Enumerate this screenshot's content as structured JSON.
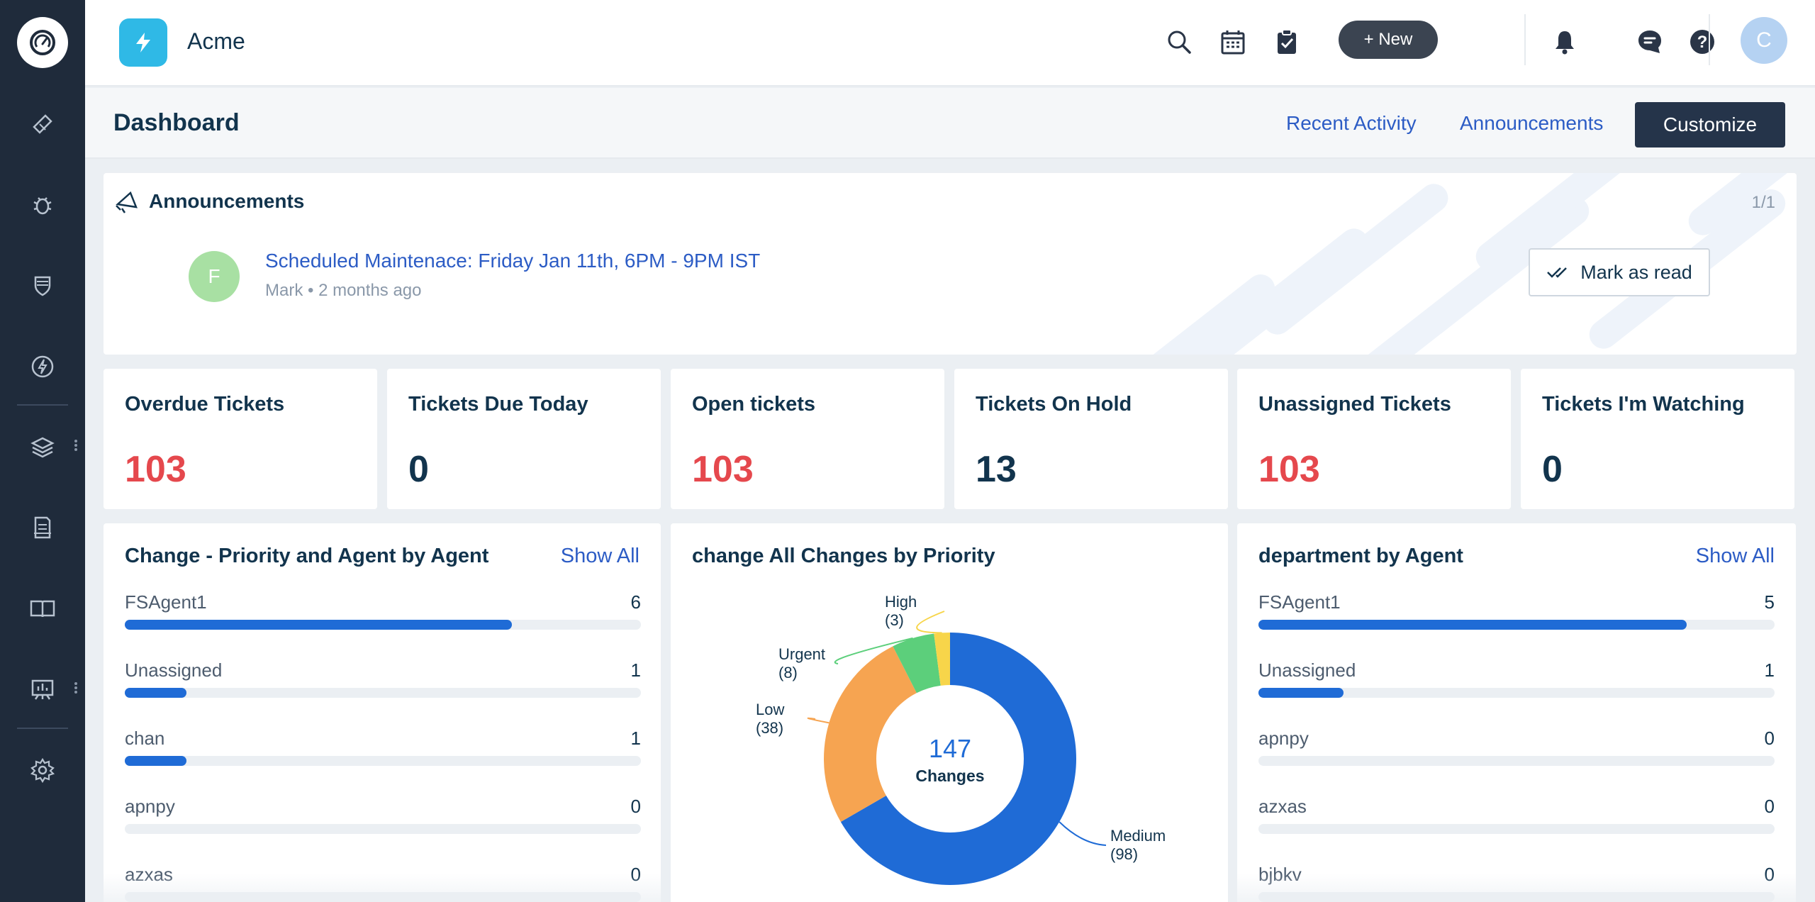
{
  "brand": {
    "name": "Acme"
  },
  "header": {
    "new_label": "+ New",
    "user_initial": "C"
  },
  "subheader": {
    "title": "Dashboard",
    "recent_activity": "Recent Activity",
    "announcements": "Announcements",
    "customize": "Customize"
  },
  "announcement": {
    "title": "Announcements",
    "page": "1/1",
    "avatar_initial": "F",
    "headline": "Scheduled Maintenace: Friday Jan 11th, 6PM - 9PM IST",
    "meta": "Mark • 2 months ago",
    "mark_read": "Mark as read"
  },
  "stats": [
    {
      "label": "Overdue Tickets",
      "value": "103",
      "alert": true
    },
    {
      "label": "Tickets Due Today",
      "value": "0",
      "alert": false
    },
    {
      "label": "Open tickets",
      "value": "103",
      "alert": true
    },
    {
      "label": "Tickets On Hold",
      "value": "13",
      "alert": false
    },
    {
      "label": "Unassigned Tickets",
      "value": "103",
      "alert": true
    },
    {
      "label": "Tickets I'm Watching",
      "value": "0",
      "alert": false
    }
  ],
  "panel_left": {
    "title": "Change - Priority and Agent by Agent",
    "show_all": "Show All",
    "rows": [
      {
        "label": "FSAgent1",
        "count": "6",
        "fraction": 0.75
      },
      {
        "label": "Unassigned",
        "count": "1",
        "fraction": 0.12
      },
      {
        "label": "chan",
        "count": "1",
        "fraction": 0.12
      },
      {
        "label": "apnpy",
        "count": "0",
        "fraction": 0
      },
      {
        "label": "azxas",
        "count": "0",
        "fraction": 0
      }
    ]
  },
  "panel_right": {
    "title": "department by Agent",
    "show_all": "Show All",
    "rows": [
      {
        "label": "FSAgent1",
        "count": "5",
        "fraction": 0.83
      },
      {
        "label": "Unassigned",
        "count": "1",
        "fraction": 0.165
      },
      {
        "label": "apnpy",
        "count": "0",
        "fraction": 0
      },
      {
        "label": "azxas",
        "count": "0",
        "fraction": 0
      },
      {
        "label": "bjbkv",
        "count": "0",
        "fraction": 0
      }
    ]
  },
  "chart_data": {
    "type": "pie",
    "title": "change All Changes by Priority",
    "center_value": "147",
    "center_label": "Changes",
    "slices": [
      {
        "name": "Medium",
        "value": 98,
        "label": "Medium",
        "sub": "(98)",
        "color": "#1f6bd6"
      },
      {
        "name": "Low",
        "value": 38,
        "label": "Low",
        "sub": "(38)",
        "color": "#f6a451"
      },
      {
        "name": "Urgent",
        "value": 8,
        "label": "Urgent",
        "sub": "(8)",
        "color": "#5ccf7b"
      },
      {
        "name": "High",
        "value": 3,
        "label": "High",
        "sub": "(3)",
        "color": "#f7d54a"
      }
    ]
  },
  "colors": {
    "sidebar": "#1f2b3b",
    "accent": "#2c5cc5",
    "alert": "#e5484d",
    "bar": "#1f6bd6"
  }
}
